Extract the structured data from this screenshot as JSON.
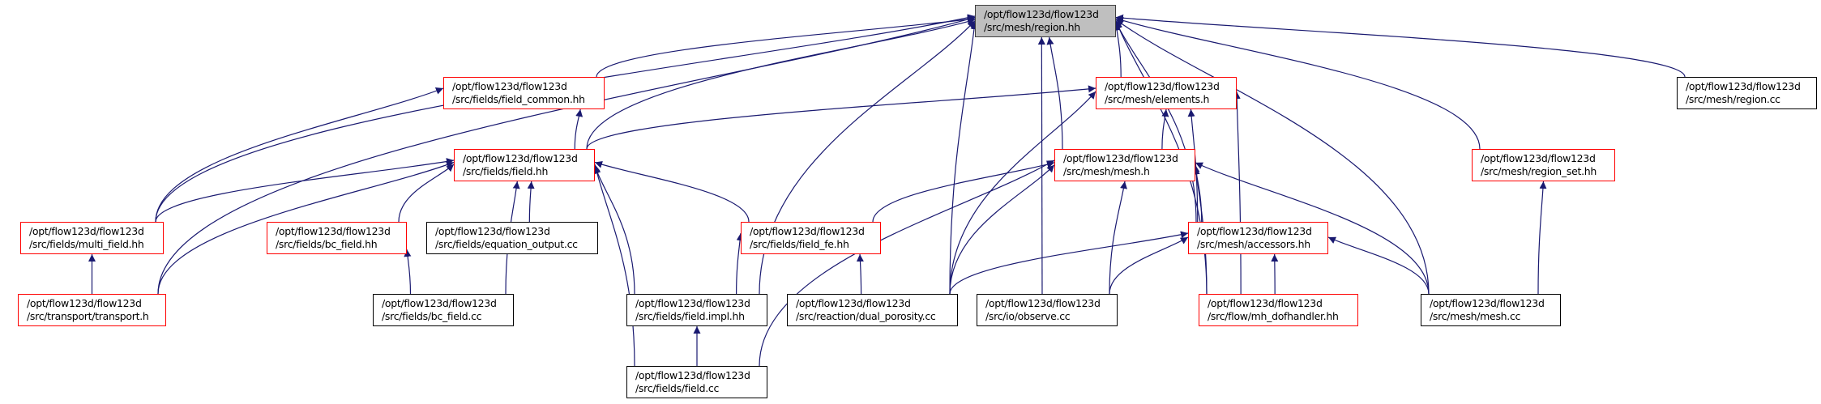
{
  "colors": {
    "edge": "#191970",
    "linked_border": "#ff0000",
    "plain_border": "#000000",
    "root_fill": "#bfbfbf"
  },
  "nodes": [
    {
      "id": "region_hh",
      "line1": "/opt/flow123d/flow123d",
      "line2": "/src/mesh/region.hh",
      "kind": "root"
    },
    {
      "id": "field_common",
      "line1": "/opt/flow123d/flow123d",
      "line2": "/src/fields/field_common.hh",
      "kind": "linked"
    },
    {
      "id": "elements",
      "line1": "/opt/flow123d/flow123d",
      "line2": "/src/mesh/elements.h",
      "kind": "linked"
    },
    {
      "id": "region_cc",
      "line1": "/opt/flow123d/flow123d",
      "line2": "/src/mesh/region.cc",
      "kind": "plain"
    },
    {
      "id": "field_hh",
      "line1": "/opt/flow123d/flow123d",
      "line2": "/src/fields/field.hh",
      "kind": "linked"
    },
    {
      "id": "mesh_h",
      "line1": "/opt/flow123d/flow123d",
      "line2": "/src/mesh/mesh.h",
      "kind": "linked"
    },
    {
      "id": "region_set",
      "line1": "/opt/flow123d/flow123d",
      "line2": "/src/mesh/region_set.hh",
      "kind": "linked"
    },
    {
      "id": "multi_field",
      "line1": "/opt/flow123d/flow123d",
      "line2": "/src/fields/multi_field.hh",
      "kind": "linked"
    },
    {
      "id": "bc_field_hh",
      "line1": "/opt/flow123d/flow123d",
      "line2": "/src/fields/bc_field.hh",
      "kind": "linked"
    },
    {
      "id": "equation_output",
      "line1": "/opt/flow123d/flow123d",
      "line2": "/src/fields/equation_output.cc",
      "kind": "plain"
    },
    {
      "id": "field_fe",
      "line1": "/opt/flow123d/flow123d",
      "line2": "/src/fields/field_fe.hh",
      "kind": "linked"
    },
    {
      "id": "accessors",
      "line1": "/opt/flow123d/flow123d",
      "line2": "/src/mesh/accessors.hh",
      "kind": "linked"
    },
    {
      "id": "transport",
      "line1": "/opt/flow123d/flow123d",
      "line2": "/src/transport/transport.h",
      "kind": "linked"
    },
    {
      "id": "bc_field_cc",
      "line1": "/opt/flow123d/flow123d",
      "line2": "/src/fields/bc_field.cc",
      "kind": "plain"
    },
    {
      "id": "field_impl",
      "line1": "/opt/flow123d/flow123d",
      "line2": "/src/fields/field.impl.hh",
      "kind": "plain"
    },
    {
      "id": "dual_porosity",
      "line1": "/opt/flow123d/flow123d",
      "line2": "/src/reaction/dual_porosity.cc",
      "kind": "plain"
    },
    {
      "id": "observe",
      "line1": "/opt/flow123d/flow123d",
      "line2": "/src/io/observe.cc",
      "kind": "plain"
    },
    {
      "id": "mh_dofhandler",
      "line1": "/opt/flow123d/flow123d",
      "line2": "/src/flow/mh_dofhandler.hh",
      "kind": "linked"
    },
    {
      "id": "mesh_cc",
      "line1": "/opt/flow123d/flow123d",
      "line2": "/src/mesh/mesh.cc",
      "kind": "plain"
    },
    {
      "id": "field_cc",
      "line1": "/opt/flow123d/flow123d",
      "line2": "/src/fields/field.cc",
      "kind": "plain"
    }
  ],
  "edges": [
    [
      "field_common",
      "region_hh"
    ],
    [
      "field_hh",
      "region_hh"
    ],
    [
      "multi_field",
      "region_hh"
    ],
    [
      "transport",
      "region_hh"
    ],
    [
      "elements",
      "region_hh"
    ],
    [
      "mesh_h",
      "region_hh"
    ],
    [
      "field_impl",
      "region_hh"
    ],
    [
      "dual_porosity",
      "region_hh"
    ],
    [
      "observe",
      "region_hh"
    ],
    [
      "accessors",
      "region_hh"
    ],
    [
      "mh_dofhandler",
      "region_hh"
    ],
    [
      "region_set",
      "region_hh"
    ],
    [
      "mesh_cc",
      "region_hh"
    ],
    [
      "region_cc",
      "region_hh"
    ],
    [
      "field_hh",
      "field_common"
    ],
    [
      "multi_field",
      "field_common"
    ],
    [
      "field_hh",
      "elements"
    ],
    [
      "mesh_h",
      "elements"
    ],
    [
      "dual_porosity",
      "elements"
    ],
    [
      "accessors",
      "elements"
    ],
    [
      "mh_dofhandler",
      "elements"
    ],
    [
      "multi_field",
      "field_hh"
    ],
    [
      "transport",
      "field_hh"
    ],
    [
      "bc_field_hh",
      "field_hh"
    ],
    [
      "equation_output",
      "field_hh"
    ],
    [
      "field_fe",
      "field_hh"
    ],
    [
      "field_impl",
      "field_hh"
    ],
    [
      "bc_field_cc",
      "field_hh"
    ],
    [
      "field_cc",
      "field_hh"
    ],
    [
      "field_fe",
      "mesh_h"
    ],
    [
      "dual_porosity",
      "mesh_h"
    ],
    [
      "observe",
      "mesh_h"
    ],
    [
      "accessors",
      "mesh_h"
    ],
    [
      "mh_dofhandler",
      "mesh_h"
    ],
    [
      "field_cc",
      "mesh_h"
    ],
    [
      "mesh_cc",
      "mesh_h"
    ],
    [
      "transport",
      "multi_field"
    ],
    [
      "bc_field_cc",
      "bc_field_hh"
    ],
    [
      "field_impl",
      "field_fe"
    ],
    [
      "dual_porosity",
      "field_fe"
    ],
    [
      "dual_porosity",
      "accessors"
    ],
    [
      "observe",
      "accessors"
    ],
    [
      "mh_dofhandler",
      "accessors"
    ],
    [
      "mesh_cc",
      "accessors"
    ],
    [
      "mesh_cc",
      "region_set"
    ],
    [
      "field_cc",
      "field_impl"
    ]
  ]
}
